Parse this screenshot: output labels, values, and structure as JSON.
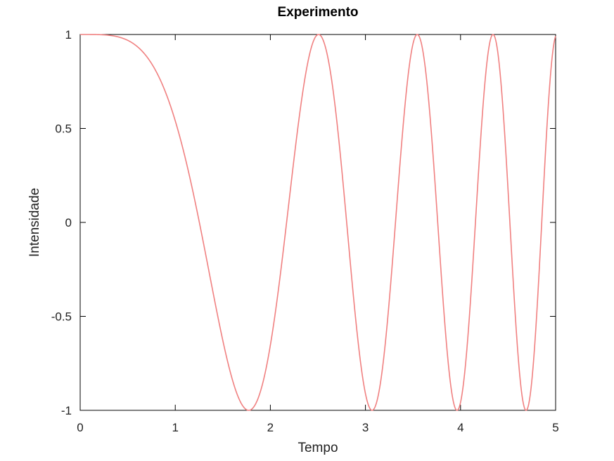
{
  "chart_data": {
    "type": "line",
    "title": "Experimento",
    "xlabel": "Tempo",
    "ylabel": "Intensidade",
    "xlim": [
      0,
      5
    ],
    "ylim": [
      -1,
      1
    ],
    "x_ticks": [
      "0",
      "1",
      "2",
      "3",
      "4",
      "5"
    ],
    "y_ticks": [
      "-1",
      "-0.5",
      "0",
      "0.5",
      "1"
    ],
    "grid": false,
    "series": [
      {
        "function": "cos(x^2)",
        "x_range": [
          0,
          5
        ],
        "color": "#f08080"
      }
    ]
  }
}
